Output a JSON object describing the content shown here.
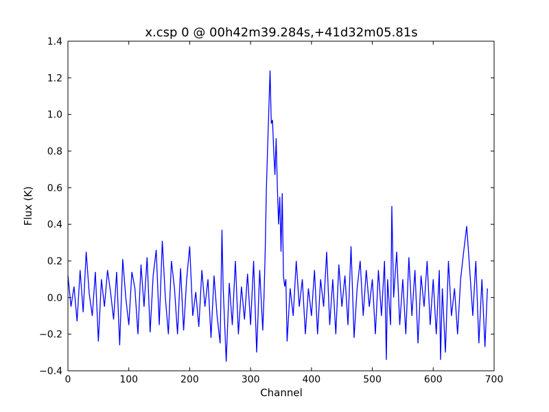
{
  "chart_data": {
    "type": "line",
    "title": "x.csp 0 @ 00h42m39.284s,+41d32m05.81s",
    "x_label": "Channel",
    "y_label": "Flux (K)",
    "x": [
      0,
      5,
      10,
      15,
      20,
      25,
      30,
      35,
      40,
      45,
      50,
      55,
      60,
      65,
      70,
      75,
      80,
      85,
      90,
      95,
      100,
      105,
      110,
      115,
      120,
      125,
      130,
      135,
      140,
      145,
      150,
      155,
      160,
      165,
      170,
      175,
      180,
      185,
      190,
      195,
      200,
      205,
      210,
      215,
      220,
      225,
      230,
      235,
      240,
      245,
      250,
      253,
      255,
      260,
      265,
      270,
      275,
      280,
      285,
      290,
      295,
      300,
      305,
      310,
      315,
      320,
      322,
      324,
      326,
      328,
      330,
      332,
      334,
      336,
      338,
      340,
      342,
      344,
      346,
      348,
      350,
      352,
      354,
      356,
      358,
      360,
      365,
      370,
      375,
      380,
      385,
      390,
      395,
      400,
      405,
      410,
      415,
      420,
      425,
      430,
      435,
      440,
      445,
      450,
      455,
      460,
      465,
      470,
      475,
      480,
      485,
      490,
      495,
      500,
      505,
      510,
      515,
      520,
      523,
      525,
      530,
      532,
      535,
      540,
      545,
      550,
      555,
      560,
      565,
      570,
      575,
      580,
      585,
      590,
      595,
      600,
      605,
      610,
      612,
      615,
      620,
      625,
      630,
      635,
      640,
      645,
      650,
      655,
      660,
      665,
      670,
      675,
      680,
      685,
      689
    ],
    "series": [
      {
        "name": "x.csp 0",
        "color": "#0000ff",
        "values": [
          0.12,
          -0.05,
          0.06,
          -0.13,
          0.15,
          -0.08,
          0.25,
          0.02,
          -0.1,
          0.14,
          -0.24,
          0.1,
          -0.05,
          0.15,
          0.03,
          -0.12,
          0.14,
          -0.26,
          0.21,
          0.0,
          -0.15,
          0.14,
          0.05,
          -0.2,
          0.18,
          -0.05,
          0.22,
          -0.19,
          0.12,
          0.26,
          -0.15,
          0.31,
          0.0,
          -0.2,
          0.2,
          0.05,
          -0.2,
          0.16,
          -0.18,
          0.1,
          0.28,
          -0.1,
          0.03,
          -0.16,
          0.15,
          -0.05,
          0.1,
          -0.22,
          0.12,
          -0.1,
          -0.25,
          0.37,
          0.05,
          -0.35,
          0.08,
          -0.15,
          0.2,
          -0.2,
          0.06,
          -0.12,
          0.13,
          -0.15,
          0.2,
          -0.3,
          0.15,
          -0.18,
          0.0,
          0.25,
          0.6,
          0.82,
          1.03,
          1.24,
          0.95,
          0.97,
          0.8,
          0.67,
          0.87,
          0.6,
          0.4,
          0.55,
          0.25,
          0.57,
          0.12,
          0.06,
          0.1,
          -0.24,
          0.05,
          -0.1,
          0.2,
          -0.05,
          0.1,
          -0.2,
          0.05,
          -0.1,
          0.15,
          -0.2,
          0.1,
          -0.05,
          0.25,
          -0.15,
          0.1,
          -0.2,
          0.18,
          -0.05,
          0.12,
          -0.15,
          0.28,
          -0.22,
          0.05,
          0.2,
          -0.1,
          0.15,
          -0.05,
          0.1,
          -0.2,
          0.15,
          -0.1,
          0.2,
          -0.34,
          0.1,
          -0.15,
          0.5,
          0.0,
          0.25,
          -0.15,
          0.1,
          -0.2,
          0.22,
          -0.1,
          0.15,
          -0.25,
          0.12,
          -0.05,
          0.2,
          -0.15,
          0.1,
          -0.2,
          0.15,
          -0.34,
          0.05,
          -0.3,
          0.2,
          -0.1,
          0.05,
          -0.2,
          0.1,
          0.25,
          0.39,
          0.15,
          -0.1,
          0.2,
          -0.25,
          0.1,
          -0.27,
          0.05
        ]
      }
    ],
    "xlim": [
      0,
      700
    ],
    "xticks": [
      0,
      100,
      200,
      300,
      400,
      500,
      600,
      700
    ],
    "ylim": [
      -0.4,
      1.4
    ],
    "yticks": [
      {
        "value": -0.4,
        "label": "−0.4"
      },
      {
        "value": -0.2,
        "label": "−0.2"
      },
      {
        "value": 0,
        "label": "0.0"
      },
      {
        "value": 0.2,
        "label": "0.2"
      },
      {
        "value": 0.4,
        "label": "0.4"
      },
      {
        "value": 0.6,
        "label": "0.6"
      },
      {
        "value": 0.8,
        "label": "0.8"
      },
      {
        "value": 1.0,
        "label": "1.0"
      },
      {
        "value": 1.2,
        "label": "1.2"
      },
      {
        "value": 1.4,
        "label": "1.4"
      }
    ]
  }
}
